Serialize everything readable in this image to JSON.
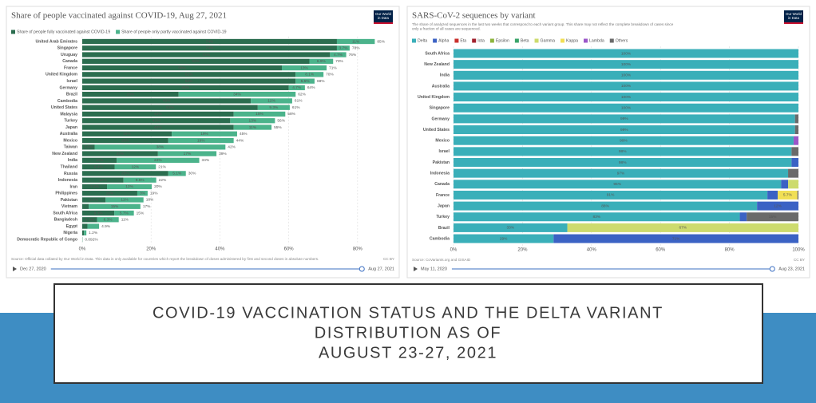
{
  "slide_title": [
    "COVID-19 VACCINATION STATUS AND THE DELTA VARIANT",
    "DISTRIBUTION AS OF",
    "AUGUST 23-27, 2021"
  ],
  "chart_data": [
    {
      "type": "bar",
      "orientation": "horizontal",
      "stacked": true,
      "title": "Share of people vaccinated against COVID-19, Aug 27, 2021",
      "logo": [
        "Our World",
        "in Data"
      ],
      "categories": [
        "United Arab Emirates",
        "Singapore",
        "Uruguay",
        "Canada",
        "France",
        "United Kingdom",
        "Israel",
        "Germany",
        "Brazil",
        "Cambodia",
        "United States",
        "Malaysia",
        "Turkey",
        "Japan",
        "Australia",
        "Mexico",
        "Taiwan",
        "New Zealand",
        "India",
        "Thailand",
        "Russia",
        "Indonesia",
        "Iran",
        "Philippines",
        "Pakistan",
        "Vietnam",
        "South Africa",
        "Bangladesh",
        "Egypt",
        "Nigeria",
        "Democratic Republic of Congo"
      ],
      "series": [
        {
          "name": "Share of people fully vaccinated against COVID-19",
          "color": "#2b6d4f",
          "values": [
            74,
            74,
            72,
            66,
            58,
            62,
            62,
            60,
            28,
            49,
            51,
            44,
            43,
            44,
            26,
            25,
            3.6,
            22,
            10,
            9.4,
            25,
            12,
            7.2,
            16,
            6.8,
            1.9,
            9.3,
            4.3,
            1.5,
            0.5,
            0.05
          ],
          "value_labels": [
            "74%",
            "74%",
            "72%",
            "66%",
            "58%",
            "62%",
            "62%",
            "60%",
            "28%",
            "49%",
            "51%",
            "44%",
            "43%",
            "44%",
            "26%",
            "25%",
            "3.6%",
            "22%",
            "10%",
            "9.4%",
            "25%",
            "12%",
            "7.2%",
            "16%",
            "6.8%",
            null,
            "9.3%",
            "4.3%",
            null,
            null,
            null
          ]
        },
        {
          "name": "Share of people only partly vaccinated against COVID-19",
          "color": "#4bb38b",
          "values": [
            11,
            3.7,
            4.7,
            6.9,
            13,
            8.1,
            5.5,
            4.7,
            34,
            12,
            9.3,
            15,
            13,
            11,
            19,
            19,
            38,
            17,
            24,
            12,
            5.1,
            9.5,
            13,
            3,
            11,
            15,
            5.7,
            6.3,
            3.4,
            0.7,
            0.042
          ],
          "value_labels": [
            "11%",
            "3.7%",
            "4.7%",
            "6.9%",
            "13%",
            "8.1%",
            "5.5%",
            "4.7%",
            "34%",
            "12%",
            "9.3%",
            "15%",
            "13%",
            "11%",
            "19%",
            "19%",
            "38%",
            "17%",
            "24%",
            "12%",
            "5.1%",
            "9.5%",
            "13%",
            "3%",
            "11%",
            "15%",
            "5.7%",
            "6.3%",
            null,
            null,
            null
          ]
        }
      ],
      "total_labels": [
        "85%",
        "78%",
        "76%",
        "73%",
        "71%",
        "70%",
        "68%",
        "64%",
        "62%",
        "61%",
        "61%",
        "58%",
        "56%",
        "55%",
        "45%",
        "44%",
        "42%",
        "39%",
        "34%",
        "21%",
        "30%",
        "22%",
        "20%",
        "19%",
        "18%",
        "17%",
        "15%",
        "11%",
        "4.9%",
        "1.2%",
        "0.092%"
      ],
      "xlim": [
        0,
        87
      ],
      "xticks": [
        {
          "value": 0,
          "label": "0%"
        },
        {
          "value": 20,
          "label": "20%"
        },
        {
          "value": 40,
          "label": "40%"
        },
        {
          "value": 60,
          "label": "60%"
        },
        {
          "value": 80,
          "label": "80%"
        }
      ],
      "grid": true,
      "source": "Source: Official data collated by Our World in Data. This data is only available for countries which report the breakdown of doses administered by first and second doses in absolute numbers.",
      "license": "CC BY",
      "timeline_start": "Dec 27, 2020",
      "timeline_end": "Aug 27, 2021"
    },
    {
      "type": "bar",
      "orientation": "horizontal",
      "stacked": true,
      "title": "SARS-CoV-2 sequences by variant",
      "subtitle": [
        "The share of analyzed sequences in the last two weeks that correspond to each variant group. This share may not reflect the complete breakdown of cases since",
        "only a fraction of all cases are sequenced."
      ],
      "logo": [
        "Our World",
        "in Data"
      ],
      "categories": [
        "South Africa",
        "New Zealand",
        "India",
        "Australia",
        "United Kingdom",
        "Singapore",
        "Germany",
        "United States",
        "Mexico",
        "Israel",
        "Pakistan",
        "Indonesia",
        "Canada",
        "France",
        "Japan",
        "Turkey",
        "Brazil",
        "Cambodia"
      ],
      "series": [
        {
          "name": "Delta",
          "color": "#3aafb9",
          "values": [
            100,
            100,
            100,
            100,
            100,
            100,
            99,
            99,
            98.6,
            98,
            98,
            97,
            95,
            91,
            88,
            83,
            33,
            29
          ],
          "value_labels": [
            "100%",
            "100%",
            "100%",
            "100%",
            "100%",
            "100%",
            "99%",
            "99%",
            "99%",
            "98%",
            "98%",
            "97%",
            "95%",
            "91%",
            "88%",
            "83%",
            "33%",
            "29%"
          ]
        },
        {
          "name": "Alpha",
          "color": "#3b62c4",
          "values": [
            0,
            0,
            0,
            0,
            0,
            0,
            0,
            0,
            0,
            0,
            2,
            0,
            2,
            3,
            12,
            2,
            0,
            71
          ],
          "value_labels": [
            null,
            null,
            null,
            null,
            null,
            null,
            null,
            null,
            null,
            null,
            null,
            null,
            null,
            null,
            "12%",
            null,
            null,
            "71%"
          ]
        },
        {
          "name": "Eta",
          "color": "#c9302c",
          "values": [
            0,
            0,
            0,
            0,
            0,
            0,
            0,
            0,
            0,
            0,
            0,
            0,
            0,
            0,
            0,
            0,
            0,
            0
          ]
        },
        {
          "name": "Iota",
          "color": "#a1222e",
          "values": [
            0,
            0,
            0,
            0,
            0,
            0,
            0,
            0,
            0,
            0,
            0,
            0,
            0,
            0,
            0,
            0,
            0,
            0
          ]
        },
        {
          "name": "Epsilon",
          "color": "#8db43d",
          "values": [
            0,
            0,
            0,
            0,
            0,
            0,
            0,
            0,
            0,
            0,
            0,
            0,
            0,
            0,
            0,
            0,
            0,
            0
          ]
        },
        {
          "name": "Beta",
          "color": "#3aa46a",
          "values": [
            0,
            0,
            0,
            0,
            0,
            0,
            0,
            0,
            0,
            0,
            0,
            0,
            0,
            0,
            0,
            0,
            0,
            0
          ]
        },
        {
          "name": "Gamma",
          "color": "#cddb6e",
          "values": [
            0,
            0,
            0,
            0,
            0,
            0,
            0,
            0,
            0,
            0,
            0,
            0,
            3,
            0,
            0,
            0,
            67,
            0
          ],
          "value_labels": [
            null,
            null,
            null,
            null,
            null,
            null,
            null,
            null,
            null,
            null,
            null,
            null,
            null,
            null,
            null,
            null,
            "67%",
            null
          ]
        },
        {
          "name": "Kappa",
          "color": "#f1df55",
          "values": [
            0,
            0,
            0,
            0,
            0,
            0,
            0,
            0,
            0,
            0,
            0,
            0,
            0,
            5.7,
            0,
            0,
            0,
            0
          ],
          "value_labels": [
            null,
            null,
            null,
            null,
            null,
            null,
            null,
            null,
            null,
            null,
            null,
            null,
            null,
            "5.7%",
            null,
            null,
            null,
            null
          ]
        },
        {
          "name": "Lambda",
          "color": "#9b57c9",
          "values": [
            0,
            0,
            0,
            0,
            0,
            0,
            0,
            0,
            1.4,
            0,
            0,
            0,
            0,
            0,
            0,
            0,
            0,
            0
          ]
        },
        {
          "name": "Others",
          "color": "#6a6a6a",
          "values": [
            0,
            0,
            0,
            0,
            0,
            0,
            1,
            1,
            0,
            2,
            0,
            3,
            0,
            0.3,
            0,
            15,
            0,
            0
          ],
          "value_labels": [
            null,
            null,
            null,
            null,
            null,
            null,
            null,
            null,
            null,
            null,
            null,
            null,
            null,
            null,
            null,
            "15%",
            null,
            null
          ]
        }
      ],
      "xlim": [
        0,
        100
      ],
      "xticks": [
        {
          "value": 0,
          "label": "0%"
        },
        {
          "value": 20,
          "label": "20%"
        },
        {
          "value": 40,
          "label": "40%"
        },
        {
          "value": 60,
          "label": "60%"
        },
        {
          "value": 80,
          "label": "80%"
        },
        {
          "value": 100,
          "label": "100%"
        }
      ],
      "grid": true,
      "source": "Source: CoVariants.org and GISAID",
      "license": "CC BY",
      "timeline_start": "May 11, 2020",
      "timeline_end": "Aug 23, 2021"
    }
  ]
}
